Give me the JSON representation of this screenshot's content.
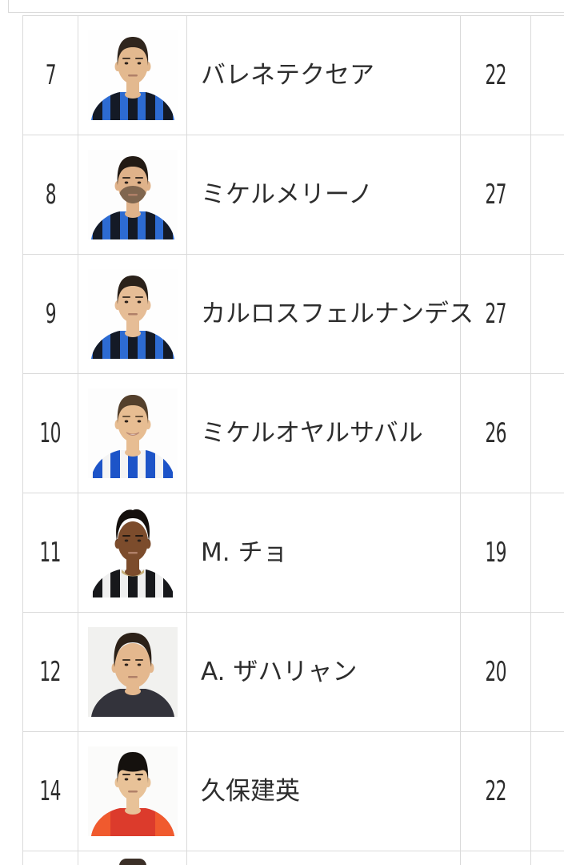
{
  "page": {
    "background": "#ffffff",
    "grid_color": "#dadada",
    "text_color": "#2d2d2d",
    "description": "squad-list-table-section"
  },
  "table": {
    "columns": [
      "number",
      "photo",
      "name",
      "age"
    ],
    "rows": [
      {
        "number": "7",
        "name": "バレネテクセア",
        "age": "22",
        "portrait": {
          "alt": "player-headshot",
          "bg": "#fefefe",
          "skin": "#e3b98f",
          "hair": "#30261e",
          "jersey": "#2d6bd2",
          "stripe": "#141a26",
          "style": "short"
        }
      },
      {
        "number": "8",
        "name": "ミケルメリーノ",
        "age": "27",
        "portrait": {
          "alt": "player-headshot",
          "bg": "#fdfdfd",
          "skin": "#dfb28a",
          "hair": "#221a14",
          "jersey": "#2d6bd2",
          "stripe": "#141a26",
          "style": "short",
          "beard": true
        }
      },
      {
        "number": "9",
        "name": "カルロスフェルナンデス",
        "age": "27",
        "portrait": {
          "alt": "player-headshot",
          "bg": "#fefefe",
          "skin": "#e6bd96",
          "hair": "#2a211a",
          "jersey": "#2d6bd2",
          "stripe": "#141a26",
          "style": "short"
        }
      },
      {
        "number": "10",
        "name": "ミケルオヤルサバル",
        "age": "26",
        "portrait": {
          "alt": "player-headshot",
          "bg": "#fdfdfd",
          "skin": "#e7bd92",
          "hair": "#54402c",
          "jersey": "#f4f4f4",
          "stripe": "#1d54c8",
          "style": "short",
          "smile": true
        }
      },
      {
        "number": "11",
        "name": "M. チョ",
        "age": "19",
        "portrait": {
          "alt": "player-headshot",
          "bg": "#ffffff",
          "skin": "#7c4c2c",
          "hair": "#15100d",
          "jersey": "#efefef",
          "stripe": "#17181b",
          "collar": "#c8b27c",
          "style": "afro"
        }
      },
      {
        "number": "12",
        "name": "A. ザハリャン",
        "age": "20",
        "portrait": {
          "alt": "player-headshot",
          "bg": "#f1f1ef",
          "skin": "#e4b88e",
          "hair": "#2c2118",
          "jersey": "#33333b",
          "style": "swept",
          "big": true
        }
      },
      {
        "number": "14",
        "name": "久保建英",
        "age": "22",
        "portrait": {
          "alt": "player-headshot",
          "bg": "#fbfbfa",
          "skin": "#e8c298",
          "hair": "#15110e",
          "jersey": "#dc3b2c",
          "accent": "#f05a2e",
          "style": "fringe"
        }
      }
    ],
    "partial_next_row": {
      "visible": true,
      "hair_color": "#3b2f27"
    },
    "table_above": {
      "cut_off": true
    }
  }
}
